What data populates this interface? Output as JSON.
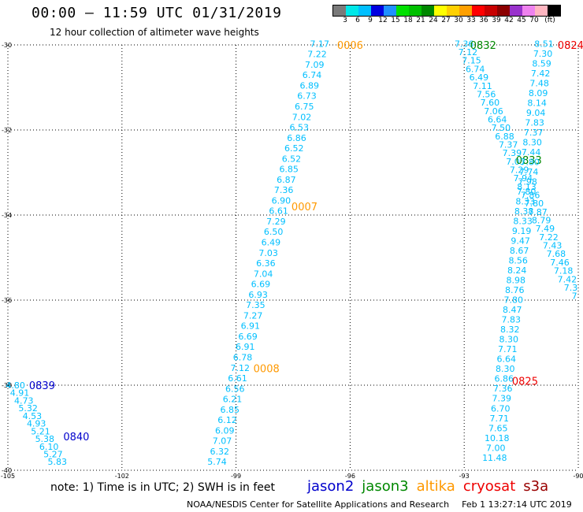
{
  "header": {
    "title": "00:00 – 11:59 UTC 01/31/2019",
    "subtitle": "12 hour collection of altimeter wave heights"
  },
  "colorbar": {
    "colors": [
      "#7a7a7a",
      "#00e8e8",
      "#00bfff",
      "#0000e0",
      "#1e90ff",
      "#00e000",
      "#00c000",
      "#008800",
      "#ffff00",
      "#ffd000",
      "#ffa000",
      "#ff0000",
      "#c80000",
      "#8b0000",
      "#9932cc",
      "#ee82ee",
      "#ffb6c1",
      "#000000"
    ],
    "labels": [
      "3",
      "6",
      "9",
      "12",
      "15",
      "18",
      "21",
      "24",
      "27",
      "30",
      "33",
      "36",
      "39",
      "42",
      "45",
      "70",
      "(ft)"
    ]
  },
  "map": {
    "lon_range": [
      -105,
      -90
    ],
    "lat_range": [
      -40,
      -30
    ],
    "lon_labels": [
      "-105",
      "-102",
      "-99",
      "-96",
      "-93",
      "-90"
    ],
    "lat_labels": [
      "-30",
      "-32",
      "-34",
      "-36",
      "-38",
      "-40"
    ],
    "value_color": "#00bfff",
    "tracks": [
      {
        "id": "0006",
        "satellite": "altika",
        "color": "#ff9900",
        "start": [
          -96.8,
          -29.97
        ],
        "end": [
          -99.5,
          -39.8
        ],
        "label_pos": [
          -96.0,
          -30.0
        ],
        "values": [
          "7.17",
          "7.22",
          "7.09",
          "6.74",
          "6.89",
          "6.73",
          "6.75",
          "7.02",
          "6.53",
          "6.86",
          "6.52",
          "6.52",
          "6.85",
          "6.87",
          "7.36",
          "6.90",
          "6.61",
          "7.29",
          "6.50",
          "6.49",
          "7.03",
          "6.36",
          "7.04",
          "6.69",
          "6.93",
          "7.35",
          "7.27",
          "6.91",
          "6.69",
          "6.91",
          "6.78",
          "7.12",
          "6.61",
          "6.56",
          "6.21",
          "6.85",
          "6.12",
          "6.09",
          "7.07",
          "6.32",
          "5.74"
        ]
      },
      {
        "id": "0007",
        "satellite": "altika",
        "color": "#ff9900",
        "label_pos": [
          -97.2,
          -33.8
        ]
      },
      {
        "id": "0008",
        "satellite": "altika",
        "color": "#ff9900",
        "label_pos": [
          -98.2,
          -37.6
        ]
      },
      {
        "id": "0832",
        "satellite": "jason3",
        "color": "#008800",
        "start": [
          -93.0,
          -29.97
        ],
        "end": [
          -90.1,
          -35.9
        ],
        "label_pos": [
          -92.5,
          -30.0
        ],
        "values": [
          "7.36",
          "7.12",
          "7.15",
          "6.74",
          "6.49",
          "7.11",
          "7.56",
          "7.60",
          "7.06",
          "6.64",
          "7.50",
          "6.88",
          "7.37",
          "7.39",
          "7.05",
          "7.29",
          "7.94",
          "8.13",
          "7.86",
          "7.80",
          "7.87",
          "8.79",
          "7.49",
          "7.22",
          "7.43",
          "7.68",
          "7.46",
          "7.18",
          "7.42",
          "7.3",
          "7"
        ]
      },
      {
        "id": "0833",
        "satellite": "jason3",
        "color": "#008800",
        "label_pos": [
          -91.3,
          -32.7
        ]
      },
      {
        "id": "0824",
        "satellite": "cryosat",
        "color": "#ee0000",
        "start": [
          -90.9,
          -29.97
        ],
        "end": [
          -92.2,
          -39.7
        ],
        "label_pos": [
          -90.2,
          -30.0
        ],
        "values": [
          "8.51",
          "7.30",
          "8.59",
          "7.42",
          "7.48",
          "8.09",
          "8.14",
          "9.04",
          "7.83",
          "7.37",
          "8.30",
          "7.44",
          "7.80",
          "7.74",
          "7.98",
          "7.80",
          "8.33",
          "8.38",
          "8.33",
          "9.19",
          "9.47",
          "8.67",
          "8.56",
          "8.24",
          "8.98",
          "8.76",
          "7.80",
          "8.47",
          "7.83",
          "8.32",
          "8.30",
          "7.71",
          "6.64",
          "8.30",
          "6.86",
          "7.36",
          "7.39",
          "6.70",
          "7.71",
          "7.65",
          "10.18",
          "7.00",
          "11.48"
        ]
      },
      {
        "id": "0825",
        "satellite": "cryosat",
        "color": "#ee0000",
        "label_pos": [
          -91.4,
          -37.9
        ]
      },
      {
        "id": "0839",
        "satellite": "jason2",
        "color": "#0000cc",
        "start": [
          -104.8,
          -38.0
        ],
        "end": [
          -103.7,
          -39.8
        ],
        "label_pos": [
          -104.1,
          -38.0
        ],
        "values": [
          "4.80",
          "4.91",
          "4.73",
          "5.32",
          "4.53",
          "4.93",
          "5.21",
          "5.38",
          "6.10",
          "5.27",
          "5.83"
        ]
      },
      {
        "id": "0840",
        "satellite": "jason2",
        "color": "#0000cc",
        "label_pos": [
          -103.2,
          -39.2
        ]
      }
    ]
  },
  "footer": {
    "note": "note:  1) Time is in UTC;  2) SWH is in feet",
    "legend": [
      {
        "name": "jason2",
        "color": "#0000cc"
      },
      {
        "name": "jason3",
        "color": "#008800"
      },
      {
        "name": "altika",
        "color": "#ff9900"
      },
      {
        "name": "cryosat",
        "color": "#ee0000"
      },
      {
        "name": "s3a",
        "color": "#990000"
      }
    ],
    "credit": "NOAA/NESDIS Center for Satellite Applications and Research",
    "timestamp": "Feb  1 13:27:14 UTC 2019"
  }
}
